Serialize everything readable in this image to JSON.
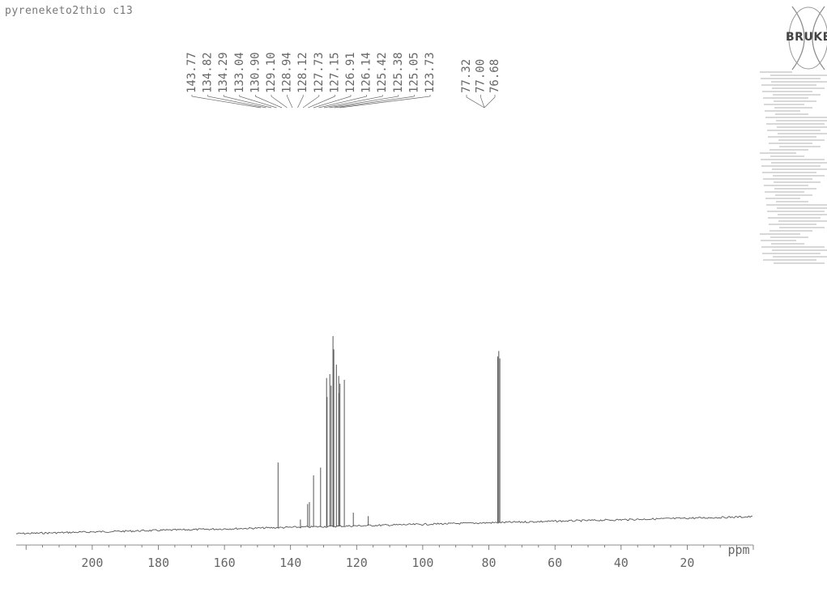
{
  "sample_title": "pyreneketo2thio c13",
  "logo": {
    "text": "BRUKER",
    "icon": "bruker-logo-icon"
  },
  "colors": {
    "trace": "#555555",
    "text": "#666666",
    "axis": "#666666"
  },
  "chart_data": {
    "type": "line",
    "title": "pyreneketo2thio c13",
    "xlabel": "ppm",
    "x_reversed": true,
    "xlim": [
      223,
      0
    ],
    "xticks": [
      200,
      180,
      160,
      140,
      120,
      100,
      80,
      60,
      40,
      20
    ],
    "grid": false,
    "peak_labels_group1": [
      "143.77",
      "134.82",
      "134.29",
      "133.04",
      "130.90",
      "129.10",
      "128.94",
      "128.12",
      "127.73",
      "127.15",
      "126.91",
      "126.14",
      "125.42",
      "125.38",
      "125.05",
      "123.73"
    ],
    "peak_labels_group2": [
      "77.32",
      "77.00",
      "76.68"
    ],
    "peaks": [
      {
        "ppm": 143.77,
        "intensity": 0.34
      },
      {
        "ppm": 134.82,
        "intensity": 0.12
      },
      {
        "ppm": 134.29,
        "intensity": 0.13
      },
      {
        "ppm": 133.04,
        "intensity": 0.27
      },
      {
        "ppm": 130.9,
        "intensity": 0.31
      },
      {
        "ppm": 129.1,
        "intensity": 0.78
      },
      {
        "ppm": 128.94,
        "intensity": 0.68
      },
      {
        "ppm": 128.12,
        "intensity": 0.8
      },
      {
        "ppm": 127.73,
        "intensity": 0.74
      },
      {
        "ppm": 127.15,
        "intensity": 1.0
      },
      {
        "ppm": 126.91,
        "intensity": 0.93
      },
      {
        "ppm": 126.14,
        "intensity": 0.85
      },
      {
        "ppm": 125.42,
        "intensity": 0.79
      },
      {
        "ppm": 125.38,
        "intensity": 0.7
      },
      {
        "ppm": 125.05,
        "intensity": 0.75
      },
      {
        "ppm": 123.73,
        "intensity": 0.77
      },
      {
        "ppm": 137.0,
        "intensity": 0.04
      },
      {
        "ppm": 121.0,
        "intensity": 0.07
      },
      {
        "ppm": 116.5,
        "intensity": 0.05
      },
      {
        "ppm": 77.32,
        "intensity": 0.89
      },
      {
        "ppm": 77.0,
        "intensity": 0.92
      },
      {
        "ppm": 76.68,
        "intensity": 0.88
      }
    ]
  }
}
